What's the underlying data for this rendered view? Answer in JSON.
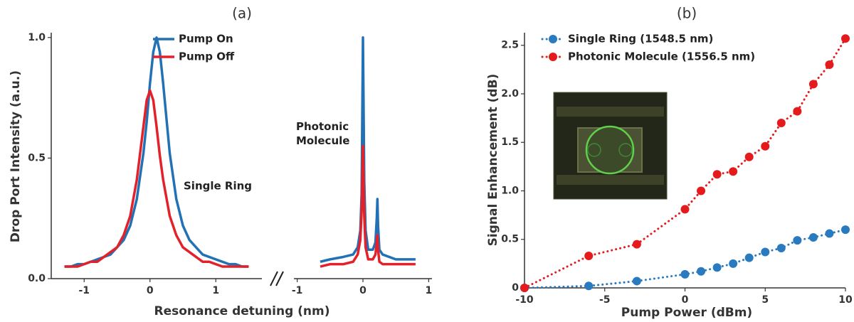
{
  "chart_data": [
    {
      "type": "line",
      "title": "(a)",
      "xlabel": "Resonance detuning (nm)",
      "ylabel": "Drop Port Intensity (a.u.)",
      "x": [
        -1.3,
        -1.2,
        -1.1,
        -1.0,
        -0.9,
        -0.8,
        -0.7,
        -0.6,
        -0.5,
        -0.4,
        -0.3,
        -0.2,
        -0.1,
        -0.05,
        0,
        0.05,
        0.1,
        0.15,
        0.2,
        0.3,
        0.4,
        0.5,
        0.6,
        0.7,
        0.8,
        0.9,
        1.0,
        1.1,
        1.2,
        1.3,
        1.4,
        1.5
      ],
      "series": [
        {
          "name": "Pump On",
          "color": "#2271b5",
          "values": [
            0.05,
            0.05,
            0.06,
            0.06,
            0.07,
            0.08,
            0.09,
            0.1,
            0.13,
            0.16,
            0.22,
            0.33,
            0.52,
            0.65,
            0.81,
            0.94,
            1.0,
            0.94,
            0.81,
            0.52,
            0.33,
            0.22,
            0.16,
            0.13,
            0.1,
            0.09,
            0.08,
            0.07,
            0.06,
            0.06,
            0.05,
            0.05
          ]
        },
        {
          "name": "Pump Off",
          "color": "#e3212b",
          "values": [
            0.05,
            0.05,
            0.05,
            0.06,
            0.07,
            0.07,
            0.09,
            0.11,
            0.13,
            0.18,
            0.26,
            0.41,
            0.63,
            0.74,
            0.78,
            0.74,
            0.63,
            0.51,
            0.41,
            0.26,
            0.18,
            0.13,
            0.11,
            0.09,
            0.07,
            0.07,
            0.06,
            0.05,
            0.05,
            0.05,
            0.05,
            0.05
          ]
        }
      ],
      "xlim": [
        -1.5,
        1.7
      ],
      "xticks": [
        -1,
        0,
        1
      ],
      "ylim": [
        0,
        1.02
      ],
      "yticks": [
        {
          "value": 0,
          "label": "0.0"
        },
        0.5,
        {
          "value": 1,
          "label": "1.0"
        }
      ],
      "annotations": [
        "Single Ring"
      ],
      "legend": "upper right"
    },
    {
      "type": "line",
      "x": [
        -0.65,
        -0.5,
        -0.3,
        -0.15,
        -0.08,
        -0.04,
        -0.02,
        0,
        0.02,
        0.04,
        0.08,
        0.15,
        0.19,
        0.21,
        0.22,
        0.23,
        0.25,
        0.3,
        0.5,
        0.8
      ],
      "series": [
        {
          "color": "#2271b5",
          "values": [
            0.07,
            0.08,
            0.09,
            0.1,
            0.13,
            0.2,
            0.35,
            1.0,
            0.4,
            0.2,
            0.12,
            0.12,
            0.15,
            0.25,
            0.33,
            0.22,
            0.12,
            0.1,
            0.08,
            0.08
          ]
        },
        {
          "color": "#e3212b",
          "values": [
            0.05,
            0.06,
            0.06,
            0.07,
            0.1,
            0.16,
            0.28,
            0.55,
            0.26,
            0.13,
            0.08,
            0.08,
            0.1,
            0.15,
            0.18,
            0.12,
            0.07,
            0.06,
            0.06,
            0.06
          ]
        }
      ],
      "xlim": [
        -1.05,
        1.05
      ],
      "xticks": [
        -1,
        0,
        1
      ],
      "ylim": [
        0,
        1.02
      ],
      "annotations": [
        "Photonic Molecule"
      ]
    },
    {
      "type": "line",
      "title": "(b)",
      "xlabel": "Pump Power (dBm)",
      "ylabel": "Signal Enhancement (dB)",
      "markers": true,
      "linestyle": "dotted",
      "series": [
        {
          "name": "Single Ring (1548.5 nm)",
          "color": "#2a7ac0",
          "x": [
            -10,
            -6,
            -3,
            0,
            1,
            2,
            3,
            4,
            5,
            6,
            7,
            8,
            9,
            10
          ],
          "values": [
            0,
            0.02,
            0.07,
            0.14,
            0.17,
            0.21,
            0.25,
            0.31,
            0.37,
            0.41,
            0.49,
            0.52,
            0.56,
            0.6
          ]
        },
        {
          "name": "Photonic Molecule (1556.5 nm)",
          "color": "#e41a1c",
          "x": [
            -10,
            -6,
            -3,
            0,
            1,
            2,
            3,
            4,
            5,
            6,
            7,
            8,
            9,
            10
          ],
          "values": [
            0,
            0.33,
            0.45,
            0.81,
            1.0,
            1.17,
            1.2,
            1.35,
            1.46,
            1.7,
            1.82,
            2.1,
            2.3,
            2.57
          ]
        }
      ],
      "xlim": [
        -10,
        10
      ],
      "xticks": [
        -10,
        -5,
        0,
        5,
        10
      ],
      "ylim": [
        0,
        2.63
      ],
      "yticks": [
        {
          "value": 0,
          "label": "0"
        },
        0.5,
        {
          "value": 1,
          "label": "1.0"
        },
        1.5,
        {
          "value": 2,
          "label": "2.0"
        },
        2.5
      ],
      "legend": "upper left"
    }
  ]
}
